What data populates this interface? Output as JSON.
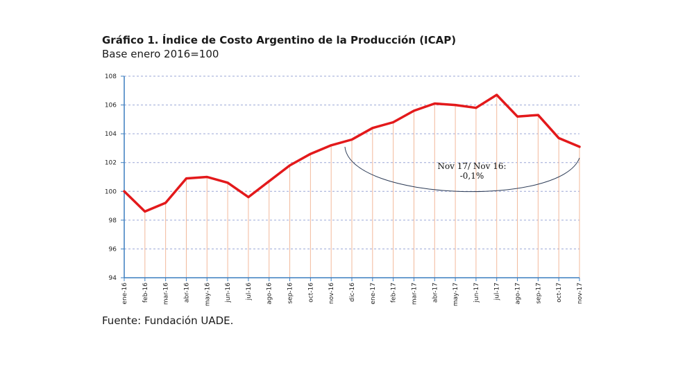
{
  "title": "Gráfico 1. Índice de Costo Argentino de la Producción (ICAP)",
  "subtitle": "Base enero 2016=100",
  "source": "Fuente: Fundación UADE.",
  "colors": {
    "line": "#e3191b",
    "axis": "#3a7dbf",
    "grid": "#9aa6d6",
    "drop": "#f2b89a",
    "annotation_arc": "#2b3a55"
  },
  "chart_data": {
    "type": "line",
    "title": "",
    "xlabel": "",
    "ylabel": "",
    "ylim": [
      94,
      108
    ],
    "yticks": [
      94,
      96,
      98,
      100,
      102,
      104,
      106,
      108
    ],
    "grid": true,
    "categories": [
      "ene-16",
      "feb-16",
      "mar-16",
      "abr-16",
      "may-16",
      "jun-16",
      "jul-16",
      "ago-16",
      "sep-16",
      "oct-16",
      "nov-16",
      "dic-16",
      "ene-17",
      "feb-17",
      "mar-17",
      "abr-17",
      "may-17",
      "jun-17",
      "jul-17",
      "ago-17",
      "sep-17",
      "oct-17",
      "nov-17"
    ],
    "series": [
      {
        "values": [
          100.0,
          98.6,
          99.2,
          100.9,
          101.0,
          100.6,
          99.6,
          100.7,
          101.8,
          102.6,
          103.2,
          103.6,
          104.4,
          104.8,
          105.6,
          106.1,
          106.0,
          105.8,
          106.7,
          105.2,
          105.3,
          103.7,
          103.1
        ]
      }
    ],
    "annotation": {
      "line1": "Nov 17/ Nov 16:",
      "line2": "-0,1%"
    }
  }
}
